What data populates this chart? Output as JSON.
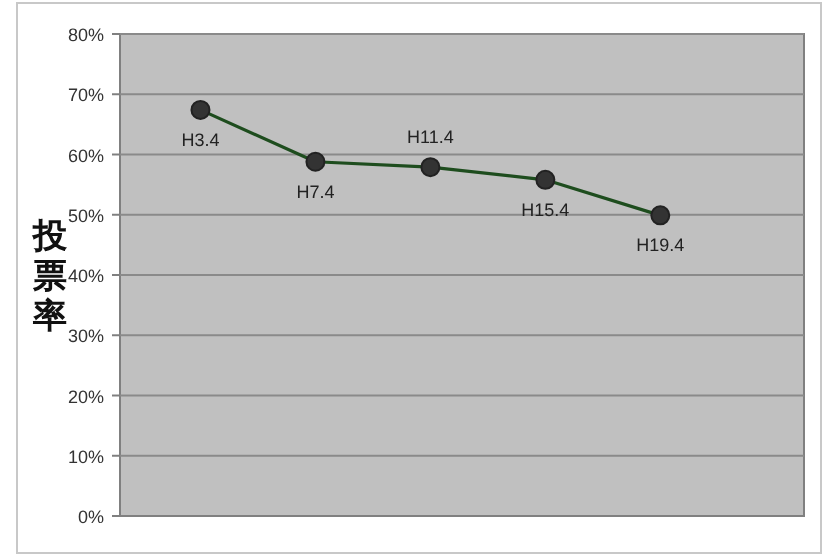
{
  "chart_data": {
    "type": "line",
    "ylabel": "投票率",
    "categories": [
      "H3.4",
      "H7.4",
      "H11.4",
      "H15.4",
      "H19.4"
    ],
    "series": [
      {
        "color": "#1e4d1e",
        "values": [
          67.4,
          58.8,
          57.9,
          55.8,
          49.9
        ]
      }
    ],
    "ylim": [
      0,
      80
    ],
    "yticks": [
      {
        "value": 0,
        "label": "0%"
      },
      {
        "value": 10,
        "label": "10%"
      },
      {
        "value": 20,
        "label": "20%"
      },
      {
        "value": 30,
        "label": "30%"
      },
      {
        "value": 40,
        "label": "40%"
      },
      {
        "value": 50,
        "label": "50%"
      },
      {
        "value": 60,
        "label": "60%"
      },
      {
        "value": 70,
        "label": "70%"
      },
      {
        "value": 80,
        "label": "80%"
      }
    ],
    "grid": "y",
    "marker": "circle",
    "line_style": "solid"
  }
}
